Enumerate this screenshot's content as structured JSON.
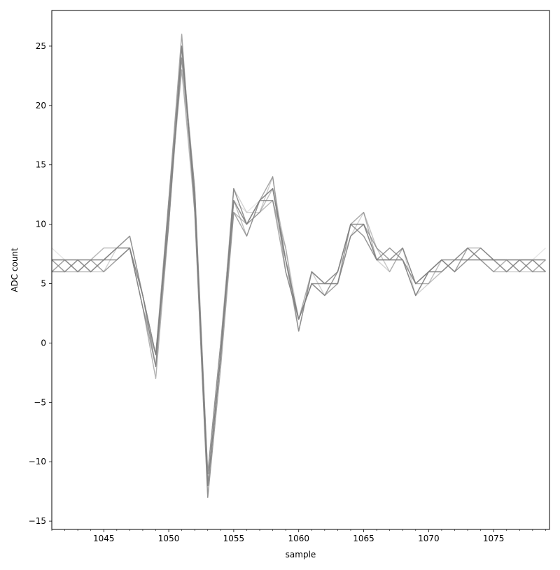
{
  "chart_data": {
    "type": "line",
    "xlabel": "sample",
    "ylabel": "ADC count",
    "xlim": [
      1041,
      1079.3
    ],
    "ylim": [
      -15.7,
      28.0
    ],
    "x_ticks": [
      1045,
      1050,
      1055,
      1060,
      1065,
      1070,
      1075
    ],
    "x_tick_labels": [
      "1045",
      "1050",
      "1055",
      "1060",
      "1065",
      "1070",
      "1075"
    ],
    "x_minor_tick_step": 1,
    "y_ticks": [
      -15,
      -10,
      -5,
      0,
      5,
      10,
      15,
      20,
      25
    ],
    "y_tick_labels": [
      "−15",
      "−10",
      "−5",
      "0",
      "5",
      "10",
      "15",
      "20",
      "25"
    ],
    "grid": false,
    "legend": "none",
    "line_color": "#808080",
    "x": [
      1041,
      1042,
      1043,
      1044,
      1045,
      1046,
      1047,
      1048,
      1049,
      1050,
      1051,
      1052,
      1053,
      1054,
      1055,
      1056,
      1057,
      1058,
      1059,
      1060,
      1061,
      1062,
      1063,
      1064,
      1065,
      1066,
      1067,
      1068,
      1069,
      1070,
      1071,
      1072,
      1073,
      1074,
      1075,
      1076,
      1077,
      1078,
      1079
    ],
    "series": [
      {
        "values": [
          7,
          7,
          7,
          7,
          7,
          8,
          8,
          4,
          -1,
          11,
          25,
          12,
          -12,
          -1,
          12,
          10,
          12,
          13,
          7,
          2,
          5,
          5,
          6,
          10,
          10,
          7,
          7,
          7,
          5,
          6,
          7,
          7,
          7,
          7,
          7,
          7,
          7,
          7,
          7
        ]
      },
      {
        "values": [
          6,
          7,
          6,
          7,
          6,
          8,
          9,
          4,
          -2,
          10,
          24,
          13,
          -11,
          0,
          13,
          11,
          11,
          12,
          8,
          1,
          6,
          5,
          5,
          9,
          11,
          8,
          7,
          8,
          5,
          6,
          6,
          7,
          8,
          7,
          6,
          7,
          6,
          6,
          7
        ]
      },
      {
        "values": [
          7,
          6,
          7,
          6,
          7,
          7,
          8,
          3,
          -2,
          12,
          26,
          11,
          -13,
          -2,
          11,
          9,
          12,
          14,
          6,
          2,
          5,
          4,
          6,
          10,
          9,
          7,
          8,
          7,
          4,
          6,
          7,
          6,
          7,
          8,
          7,
          6,
          7,
          7,
          6
        ]
      },
      {
        "values": [
          6,
          6,
          6,
          6,
          7,
          8,
          8,
          4,
          -1,
          11,
          23,
          12,
          -12,
          -1,
          12,
          10,
          11,
          13,
          7,
          2,
          5,
          5,
          5,
          9,
          10,
          7,
          7,
          7,
          5,
          5,
          7,
          7,
          7,
          7,
          6,
          7,
          7,
          6,
          7
        ]
      },
      {
        "values": [
          7,
          7,
          7,
          7,
          8,
          8,
          9,
          4,
          -1,
          11,
          24,
          13,
          -11,
          0,
          12,
          10,
          12,
          12,
          7,
          1,
          6,
          5,
          6,
          10,
          10,
          8,
          6,
          8,
          5,
          6,
          6,
          7,
          8,
          7,
          7,
          6,
          7,
          7,
          7
        ]
      },
      {
        "values": [
          6,
          7,
          6,
          7,
          6,
          7,
          8,
          3,
          -3,
          10,
          25,
          12,
          -12,
          -1,
          13,
          10,
          12,
          13,
          7,
          2,
          5,
          4,
          5,
          10,
          11,
          7,
          7,
          7,
          4,
          6,
          7,
          6,
          8,
          8,
          7,
          7,
          6,
          7,
          6
        ]
      },
      {
        "values": [
          7,
          6,
          7,
          6,
          7,
          8,
          8,
          4,
          -2,
          11,
          25,
          12,
          -12,
          -1,
          11,
          10,
          11,
          12,
          8,
          2,
          5,
          5,
          6,
          9,
          10,
          7,
          7,
          8,
          5,
          6,
          7,
          7,
          7,
          7,
          7,
          7,
          7,
          6,
          7
        ]
      },
      {
        "values": [
          7,
          7,
          7,
          6,
          7,
          8,
          9,
          4,
          -1,
          12,
          23,
          11,
          -13,
          -1,
          12,
          9,
          12,
          13,
          7,
          1,
          6,
          5,
          5,
          10,
          10,
          8,
          7,
          7,
          5,
          5,
          6,
          7,
          7,
          7,
          6,
          6,
          7,
          7,
          7
        ]
      },
      {
        "values": [
          6,
          6,
          7,
          7,
          7,
          7,
          8,
          4,
          -2,
          11,
          24,
          12,
          -11,
          0,
          12,
          10,
          11,
          14,
          7,
          2,
          5,
          4,
          6,
          10,
          9,
          7,
          8,
          7,
          4,
          6,
          7,
          6,
          7,
          8,
          7,
          7,
          6,
          7,
          7
        ]
      },
      {
        "values": [
          7,
          7,
          6,
          7,
          7,
          8,
          8,
          3,
          -1,
          10,
          25,
          13,
          -12,
          -1,
          13,
          10,
          12,
          12,
          6,
          2,
          6,
          5,
          5,
          9,
          10,
          7,
          7,
          8,
          5,
          6,
          6,
          7,
          8,
          7,
          7,
          7,
          7,
          6,
          6
        ]
      },
      {
        "values": [
          8,
          7,
          7,
          7,
          8,
          8,
          9,
          4,
          -2,
          11,
          24,
          12,
          -12,
          -1,
          12,
          11,
          12,
          13,
          7,
          2,
          5,
          5,
          6,
          10,
          11,
          8,
          7,
          7,
          5,
          6,
          7,
          7,
          7,
          7,
          6,
          7,
          7,
          7,
          8
        ]
      },
      {
        "values": [
          6,
          6,
          6,
          6,
          6,
          7,
          8,
          4,
          -1,
          12,
          25,
          12,
          -11,
          0,
          11,
          10,
          11,
          13,
          8,
          1,
          6,
          4,
          5,
          9,
          10,
          7,
          6,
          8,
          4,
          5,
          7,
          6,
          8,
          7,
          7,
          6,
          6,
          7,
          6
        ]
      }
    ]
  }
}
